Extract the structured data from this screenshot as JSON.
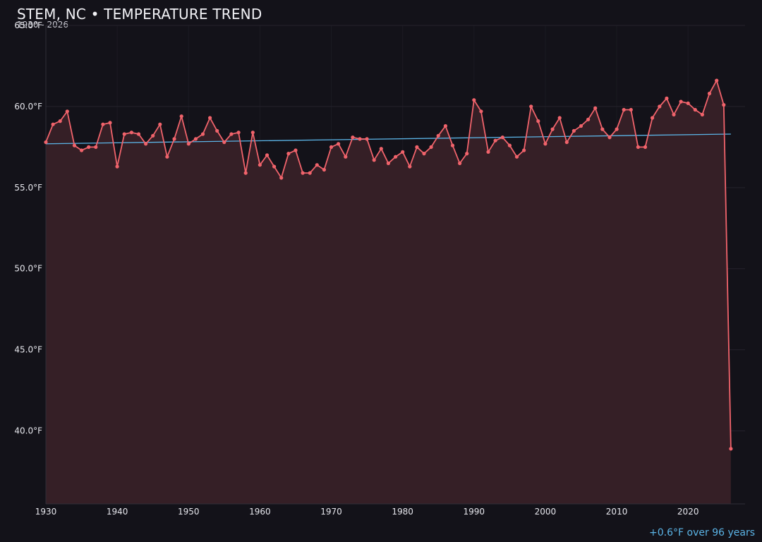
{
  "header": {
    "title": "STEM, NC • TEMPERATURE TREND",
    "subtitle": "1930 - 2026"
  },
  "footer": {
    "trend_note": "+0.6°F over 96 years"
  },
  "colors": {
    "background": "#131219",
    "line": "#f0636b",
    "area_fill": "#351f26",
    "trend": "#5bb4e6",
    "grid": "#24232c"
  },
  "chart_data": {
    "type": "line",
    "title": "STEM, NC • TEMPERATURE TREND",
    "subtitle": "1930 - 2026",
    "xlabel": "",
    "ylabel": "",
    "xlim": [
      1930,
      2027
    ],
    "ylim": [
      35.5,
      65
    ],
    "grid": true,
    "x_ticks": [
      1930,
      1940,
      1950,
      1960,
      1970,
      1980,
      1990,
      2000,
      2010,
      2020
    ],
    "y_ticks": [
      40,
      45,
      50,
      55,
      60,
      65
    ],
    "y_tick_labels": [
      "40.0°F",
      "45.0°F",
      "50.0°F",
      "55.0°F",
      "60.0°F",
      "65.0°F"
    ],
    "x": [
      1930,
      1931,
      1932,
      1933,
      1934,
      1935,
      1936,
      1937,
      1938,
      1939,
      1940,
      1941,
      1942,
      1943,
      1944,
      1945,
      1946,
      1947,
      1948,
      1949,
      1950,
      1951,
      1952,
      1953,
      1954,
      1955,
      1956,
      1957,
      1958,
      1959,
      1960,
      1961,
      1962,
      1963,
      1964,
      1965,
      1966,
      1967,
      1968,
      1969,
      1970,
      1971,
      1972,
      1973,
      1974,
      1975,
      1976,
      1977,
      1978,
      1979,
      1980,
      1981,
      1982,
      1983,
      1984,
      1985,
      1986,
      1987,
      1988,
      1989,
      1990,
      1991,
      1992,
      1993,
      1994,
      1995,
      1996,
      1997,
      1998,
      1999,
      2000,
      2001,
      2002,
      2003,
      2004,
      2005,
      2006,
      2007,
      2008,
      2009,
      2010,
      2011,
      2012,
      2013,
      2014,
      2015,
      2016,
      2017,
      2018,
      2019,
      2020,
      2021,
      2022,
      2023,
      2024,
      2025,
      2026
    ],
    "series": [
      {
        "values": [
          57.8,
          58.9,
          59.1,
          59.7,
          57.6,
          57.3,
          57.5,
          57.5,
          58.9,
          59.0,
          56.3,
          58.3,
          58.4,
          58.3,
          57.7,
          58.2,
          58.9,
          56.9,
          58.0,
          59.4,
          57.7,
          58.0,
          58.3,
          59.3,
          58.5,
          57.8,
          58.3,
          58.4,
          55.9,
          58.4,
          56.4,
          57.0,
          56.3,
          55.6,
          57.1,
          57.3,
          55.9,
          55.9,
          56.4,
          56.1,
          57.5,
          57.7,
          56.9,
          58.1,
          58.0,
          58.0,
          56.7,
          57.4,
          56.5,
          56.9,
          57.2,
          56.3,
          57.5,
          57.1,
          57.5,
          58.2,
          58.8,
          57.6,
          56.5,
          57.1,
          60.4,
          59.7,
          57.2,
          57.9,
          58.1,
          57.6,
          56.9,
          57.3,
          60.0,
          59.1,
          57.7,
          58.6,
          59.3,
          57.8,
          58.5,
          58.8,
          59.2,
          59.9,
          58.6,
          58.1,
          58.6,
          59.8,
          59.8,
          57.5,
          57.5,
          59.3,
          60.0,
          60.5,
          59.5,
          60.3,
          60.2,
          59.8,
          59.5,
          60.8,
          61.6,
          60.1,
          38.9
        ]
      }
    ],
    "trend_line": {
      "x": [
        1930,
        2026
      ],
      "y": [
        57.7,
        58.3
      ]
    }
  }
}
